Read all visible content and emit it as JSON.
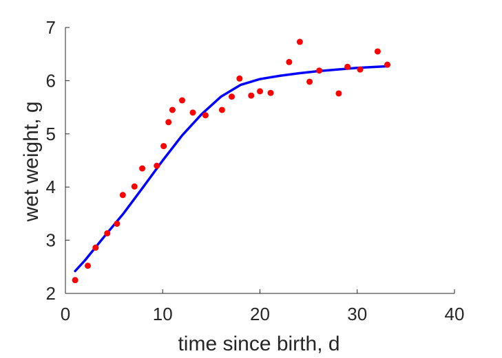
{
  "chart_data": {
    "type": "scatter",
    "title": "",
    "xlabel": "time since birth, d",
    "ylabel": "wet weight, g",
    "xlim": [
      0,
      40
    ],
    "ylim": [
      2,
      7
    ],
    "xticks": [
      0,
      10,
      20,
      30,
      40
    ],
    "yticks": [
      2,
      3,
      4,
      5,
      6,
      7
    ],
    "grid": false,
    "legend": "none",
    "series": [
      {
        "kind": "points",
        "color": "#ff0000",
        "x": [
          1,
          2.3,
          3.1,
          4.3,
          5.3,
          5.9,
          7.1,
          7.9,
          9.4,
          10.1,
          10.6,
          11.0,
          12.0,
          13.1,
          14.4,
          16.1,
          17.1,
          17.9,
          19.1,
          20.0,
          21.1,
          23.0,
          24.1,
          25.1,
          26.1,
          28.1,
          29.0,
          30.3,
          32.1,
          33.1
        ],
        "y": [
          2.25,
          2.52,
          2.86,
          3.13,
          3.31,
          3.85,
          4.01,
          4.35,
          4.4,
          4.77,
          5.22,
          5.45,
          5.63,
          5.4,
          5.35,
          5.45,
          5.7,
          6.04,
          5.72,
          5.8,
          5.77,
          6.35,
          6.73,
          5.98,
          6.19,
          5.76,
          6.26,
          6.21,
          6.55,
          6.3
        ]
      },
      {
        "kind": "line",
        "color": "#0000ff",
        "x": [
          1,
          2,
          4,
          6,
          8,
          10,
          12,
          14,
          16,
          18,
          20,
          22,
          24,
          26,
          28,
          30,
          33
        ],
        "y": [
          2.42,
          2.62,
          3.07,
          3.51,
          4.0,
          4.5,
          4.97,
          5.37,
          5.7,
          5.92,
          6.03,
          6.09,
          6.14,
          6.18,
          6.21,
          6.24,
          6.27
        ]
      }
    ]
  }
}
